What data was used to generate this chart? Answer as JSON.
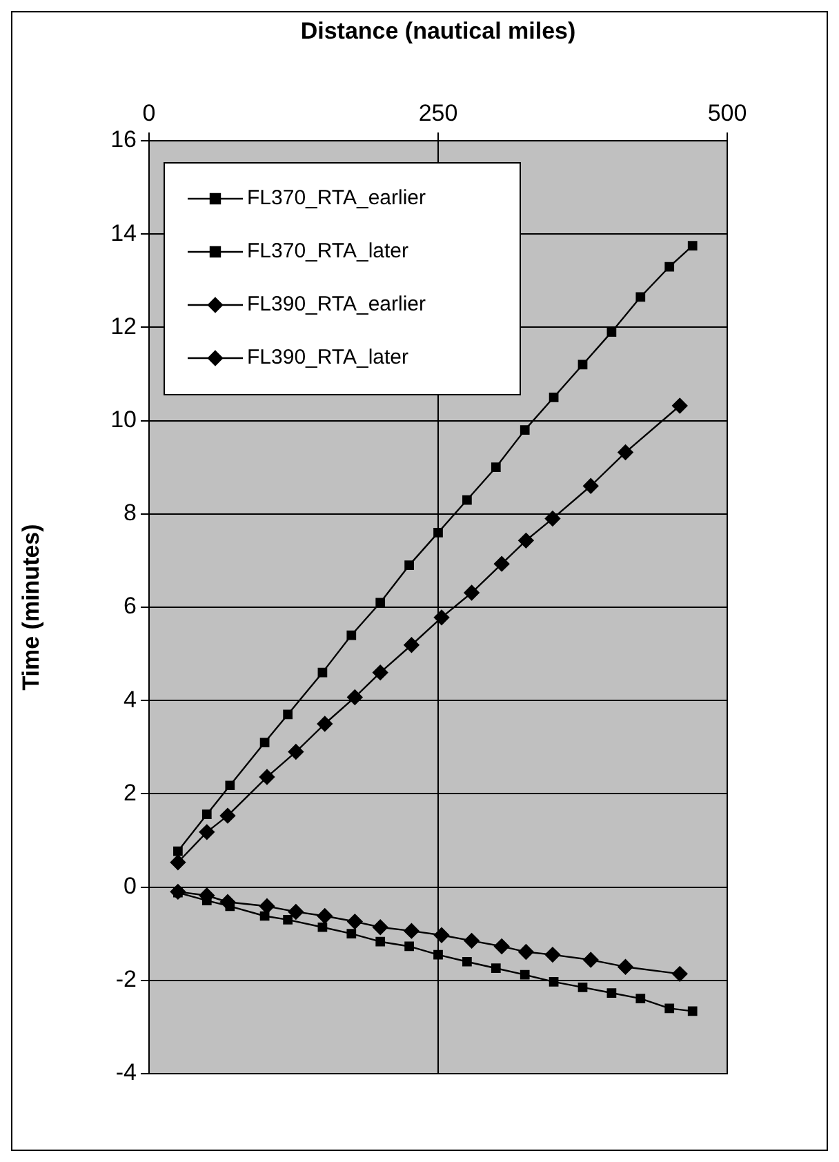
{
  "chart_data": {
    "type": "line",
    "xlabel": "Distance (nautical miles)",
    "ylabel": "Time (minutes)",
    "xlim": [
      0,
      500
    ],
    "xticks": [
      0,
      250,
      500
    ],
    "ylim": [
      -4,
      16
    ],
    "yticks": [
      -4,
      -2,
      0,
      2,
      4,
      6,
      8,
      10,
      12,
      14,
      16
    ],
    "grid": true,
    "legend": "top left",
    "line_style": "solid",
    "series": [
      {
        "name": "FL370_RTA_earlier",
        "color": "#000000",
        "marker": "square",
        "x": [
          25,
          50,
          70,
          100,
          120,
          150,
          175,
          200,
          225,
          250,
          275,
          300,
          325,
          350,
          375,
          400,
          425,
          450,
          470
        ],
        "values": [
          -0.12,
          -0.29,
          -0.41,
          -0.62,
          -0.7,
          -0.86,
          -1.0,
          -1.17,
          -1.27,
          -1.45,
          -1.6,
          -1.74,
          -1.88,
          -2.03,
          -2.15,
          -2.27,
          -2.39,
          -2.6,
          -2.66
        ]
      },
      {
        "name": "FL370_RTA_later",
        "color": "#000000",
        "marker": "square",
        "x": [
          25,
          50,
          70,
          100,
          120,
          150,
          175,
          200,
          225,
          250,
          275,
          300,
          325,
          350,
          375,
          400,
          425,
          450,
          470
        ],
        "values": [
          0.77,
          1.56,
          2.18,
          3.1,
          3.7,
          4.6,
          5.4,
          6.1,
          6.9,
          7.6,
          8.3,
          9.0,
          9.8,
          10.5,
          11.2,
          11.9,
          12.65,
          13.3,
          13.75
        ]
      },
      {
        "name": "FL390_RTA_earlier",
        "color": "#000000",
        "marker": "diamond",
        "x": [
          25,
          50,
          68,
          102,
          127,
          152,
          178,
          200,
          227,
          253,
          279,
          305,
          326,
          349,
          382,
          412,
          459
        ],
        "values": [
          -0.1,
          -0.18,
          -0.32,
          -0.41,
          -0.53,
          -0.62,
          -0.74,
          -0.86,
          -0.94,
          -1.03,
          -1.15,
          -1.27,
          -1.39,
          -1.45,
          -1.56,
          -1.71,
          -1.86
        ]
      },
      {
        "name": "FL390_RTA_later",
        "color": "#000000",
        "marker": "diamond",
        "x": [
          25,
          50,
          68,
          102,
          127,
          152,
          178,
          200,
          227,
          253,
          279,
          305,
          326,
          349,
          382,
          412,
          459
        ],
        "values": [
          0.53,
          1.18,
          1.53,
          2.36,
          2.9,
          3.5,
          4.07,
          4.6,
          5.19,
          5.78,
          6.31,
          6.93,
          7.43,
          7.9,
          8.6,
          9.32,
          10.32
        ]
      }
    ]
  }
}
